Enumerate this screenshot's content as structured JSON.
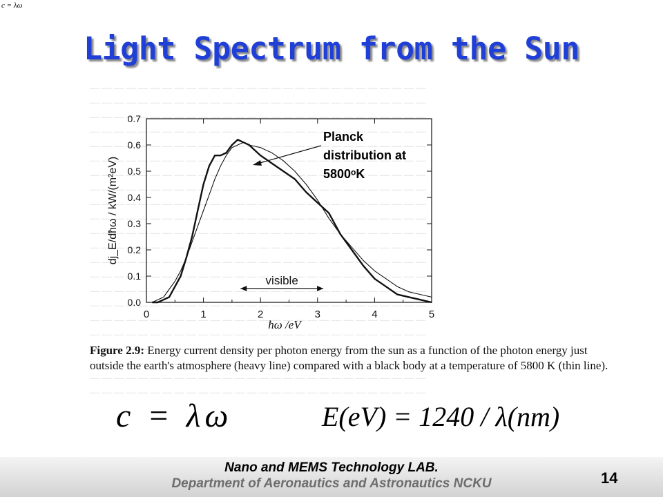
{
  "corner_equation": "c = λω",
  "slide_title": "Light Spectrum from the Sun",
  "figure_caption": {
    "label": "Figure 2.9:",
    "text": "Energy current density per photon energy from the sun as a function of the photon energy just outside the earth's atmosphere (heavy line) compared with a black body at a temperature of 5800 K (thin line)."
  },
  "formulas": {
    "eq1": "c = λω",
    "eq2": "E(eV) = 1240 / λ(nm)"
  },
  "footer": {
    "lab": "Nano and MEMS Technology LAB.",
    "department": "Department of Aeronautics and Astronautics NCKU",
    "page_number": "14"
  },
  "colors": {
    "title": "#1f3fd6",
    "footer_gray": "#6d6d6d"
  },
  "chart_data": {
    "type": "line",
    "xlabel": "ħω /eV",
    "ylabel": "dj_E/dħω / kW/(m²eV)",
    "xlim": [
      0,
      5
    ],
    "ylim": [
      0,
      0.7
    ],
    "x_ticks": [
      "0",
      "1",
      "2",
      "3",
      "4",
      "5"
    ],
    "y_ticks": [
      "0.0",
      "0.1",
      "0.2",
      "0.3",
      "0.4",
      "0.5",
      "0.6",
      "0.7"
    ],
    "annotation": {
      "text_lines": [
        "Planck",
        "distribution at",
        "5800ᵒK"
      ]
    },
    "band": {
      "label": "visible",
      "x_range": [
        1.65,
        3.1
      ]
    },
    "series": [
      {
        "style": "heavy",
        "x": [
          0.1,
          0.2,
          0.3,
          0.4,
          0.5,
          0.6,
          0.7,
          0.8,
          0.9,
          1.0,
          1.1,
          1.2,
          1.3,
          1.4,
          1.5,
          1.6,
          1.7,
          1.8,
          1.9,
          2.0,
          2.2,
          2.4,
          2.6,
          2.8,
          3.0,
          3.2,
          3.4,
          3.6,
          3.8,
          4.0,
          4.2,
          4.4,
          4.6,
          4.8,
          5.0
        ],
        "y": [
          0.0,
          0.0,
          0.01,
          0.02,
          0.06,
          0.1,
          0.17,
          0.25,
          0.35,
          0.45,
          0.52,
          0.56,
          0.56,
          0.57,
          0.6,
          0.62,
          0.61,
          0.6,
          0.58,
          0.56,
          0.53,
          0.5,
          0.47,
          0.42,
          0.38,
          0.34,
          0.26,
          0.2,
          0.14,
          0.09,
          0.06,
          0.03,
          0.02,
          0.01,
          0.0
        ]
      },
      {
        "style": "thin",
        "x": [
          0.1,
          0.2,
          0.3,
          0.4,
          0.5,
          0.6,
          0.7,
          0.8,
          0.9,
          1.0,
          1.1,
          1.2,
          1.3,
          1.4,
          1.5,
          1.6,
          1.7,
          1.8,
          1.9,
          2.0,
          2.2,
          2.4,
          2.6,
          2.8,
          3.0,
          3.2,
          3.4,
          3.6,
          3.8,
          4.0,
          4.2,
          4.4,
          4.6,
          4.8,
          5.0
        ],
        "y": [
          0.0,
          0.01,
          0.02,
          0.05,
          0.08,
          0.12,
          0.17,
          0.23,
          0.29,
          0.35,
          0.41,
          0.47,
          0.52,
          0.56,
          0.59,
          0.6,
          0.61,
          0.6,
          0.595,
          0.59,
          0.57,
          0.54,
          0.5,
          0.45,
          0.39,
          0.32,
          0.26,
          0.21,
          0.16,
          0.12,
          0.09,
          0.06,
          0.04,
          0.03,
          0.02
        ]
      }
    ]
  }
}
